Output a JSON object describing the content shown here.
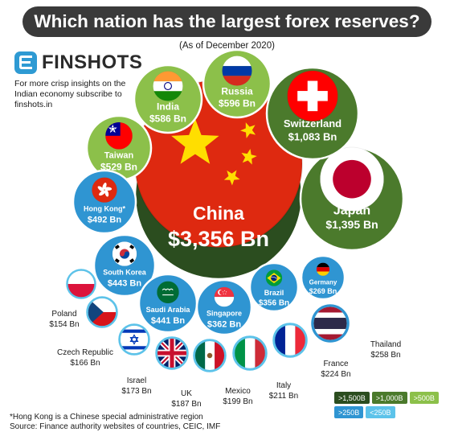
{
  "header": {
    "title": "Which nation has the largest forex reserves?",
    "subtitle": "(As of December 2020)"
  },
  "brand": {
    "name": "FINSHOTS",
    "tagline": "For more crisp insights on the Indian economy subscribe to finshots.in",
    "icon": "finshots-logo-icon"
  },
  "footnote": {
    "line1": "*Hong Kong is a Chinese special administrative region",
    "line2": "Source: Finance authority websites of countries, CEIC, IMF"
  },
  "legend": [
    {
      "label": ">1,500B",
      "color": "#2b4d1f"
    },
    {
      "label": ">1,000B",
      "color": "#4b7a2c"
    },
    {
      "label": ">500B",
      "color": "#8cc04a"
    },
    {
      "label": ">250B",
      "color": "#2f95d2"
    },
    {
      "label": "<250B",
      "color": "#5cc3ea"
    }
  ],
  "chart_data": {
    "type": "bubble",
    "unit": "Bn",
    "title": "Which nation has the largest forex reserves?",
    "subtitle": "(As of December 2020)",
    "series": [
      {
        "name": "China",
        "label": "$3,356 Bn",
        "value": 3356,
        "flag": "china-flag-icon"
      },
      {
        "name": "Japan",
        "label": "$1,395 Bn",
        "value": 1395,
        "flag": "japan-flag-icon"
      },
      {
        "name": "Switzerland",
        "label": "$1,083 Bn",
        "value": 1083,
        "flag": "switzerland-flag-icon"
      },
      {
        "name": "Russia",
        "label": "$596 Bn",
        "value": 596,
        "flag": "russia-flag-icon"
      },
      {
        "name": "India",
        "label": "$586 Bn",
        "value": 586,
        "flag": "india-flag-icon"
      },
      {
        "name": "Taiwan",
        "label": "$529 Bn",
        "value": 529,
        "flag": "taiwan-flag-icon"
      },
      {
        "name": "Hong Kong*",
        "label": "$492 Bn",
        "value": 492,
        "flag": "hong-kong-flag-icon"
      },
      {
        "name": "South Korea",
        "label": "$443 Bn",
        "value": 443,
        "flag": "south-korea-flag-icon"
      },
      {
        "name": "Saudi Arabia",
        "label": "$441 Bn",
        "value": 441,
        "flag": "saudi-arabia-flag-icon"
      },
      {
        "name": "Singapore",
        "label": "$362 Bn",
        "value": 362,
        "flag": "singapore-flag-icon"
      },
      {
        "name": "Brazil",
        "label": "$356 Bn",
        "value": 356,
        "flag": "brazil-flag-icon"
      },
      {
        "name": "Germany",
        "label": "$269 Bn",
        "value": 269,
        "flag": "germany-flag-icon"
      },
      {
        "name": "Thailand",
        "label": "$258 Bn",
        "value": 258,
        "flag": "thailand-flag-icon"
      },
      {
        "name": "France",
        "label": "$224 Bn",
        "value": 224,
        "flag": "france-flag-icon"
      },
      {
        "name": "Italy",
        "label": "$211 Bn",
        "value": 211,
        "flag": "italy-flag-icon"
      },
      {
        "name": "Mexico",
        "label": "$199 Bn",
        "value": 199,
        "flag": "mexico-flag-icon"
      },
      {
        "name": "UK",
        "label": "$187 Bn",
        "value": 187,
        "flag": "uk-flag-icon"
      },
      {
        "name": "Israel",
        "label": "$173 Bn",
        "value": 173,
        "flag": "israel-flag-icon"
      },
      {
        "name": "Czech Republic",
        "label": "$166 Bn",
        "value": 166,
        "flag": "czech-republic-flag-icon"
      },
      {
        "name": "Poland",
        "label": "$154 Bn",
        "value": 154,
        "flag": "poland-flag-icon"
      }
    ]
  }
}
